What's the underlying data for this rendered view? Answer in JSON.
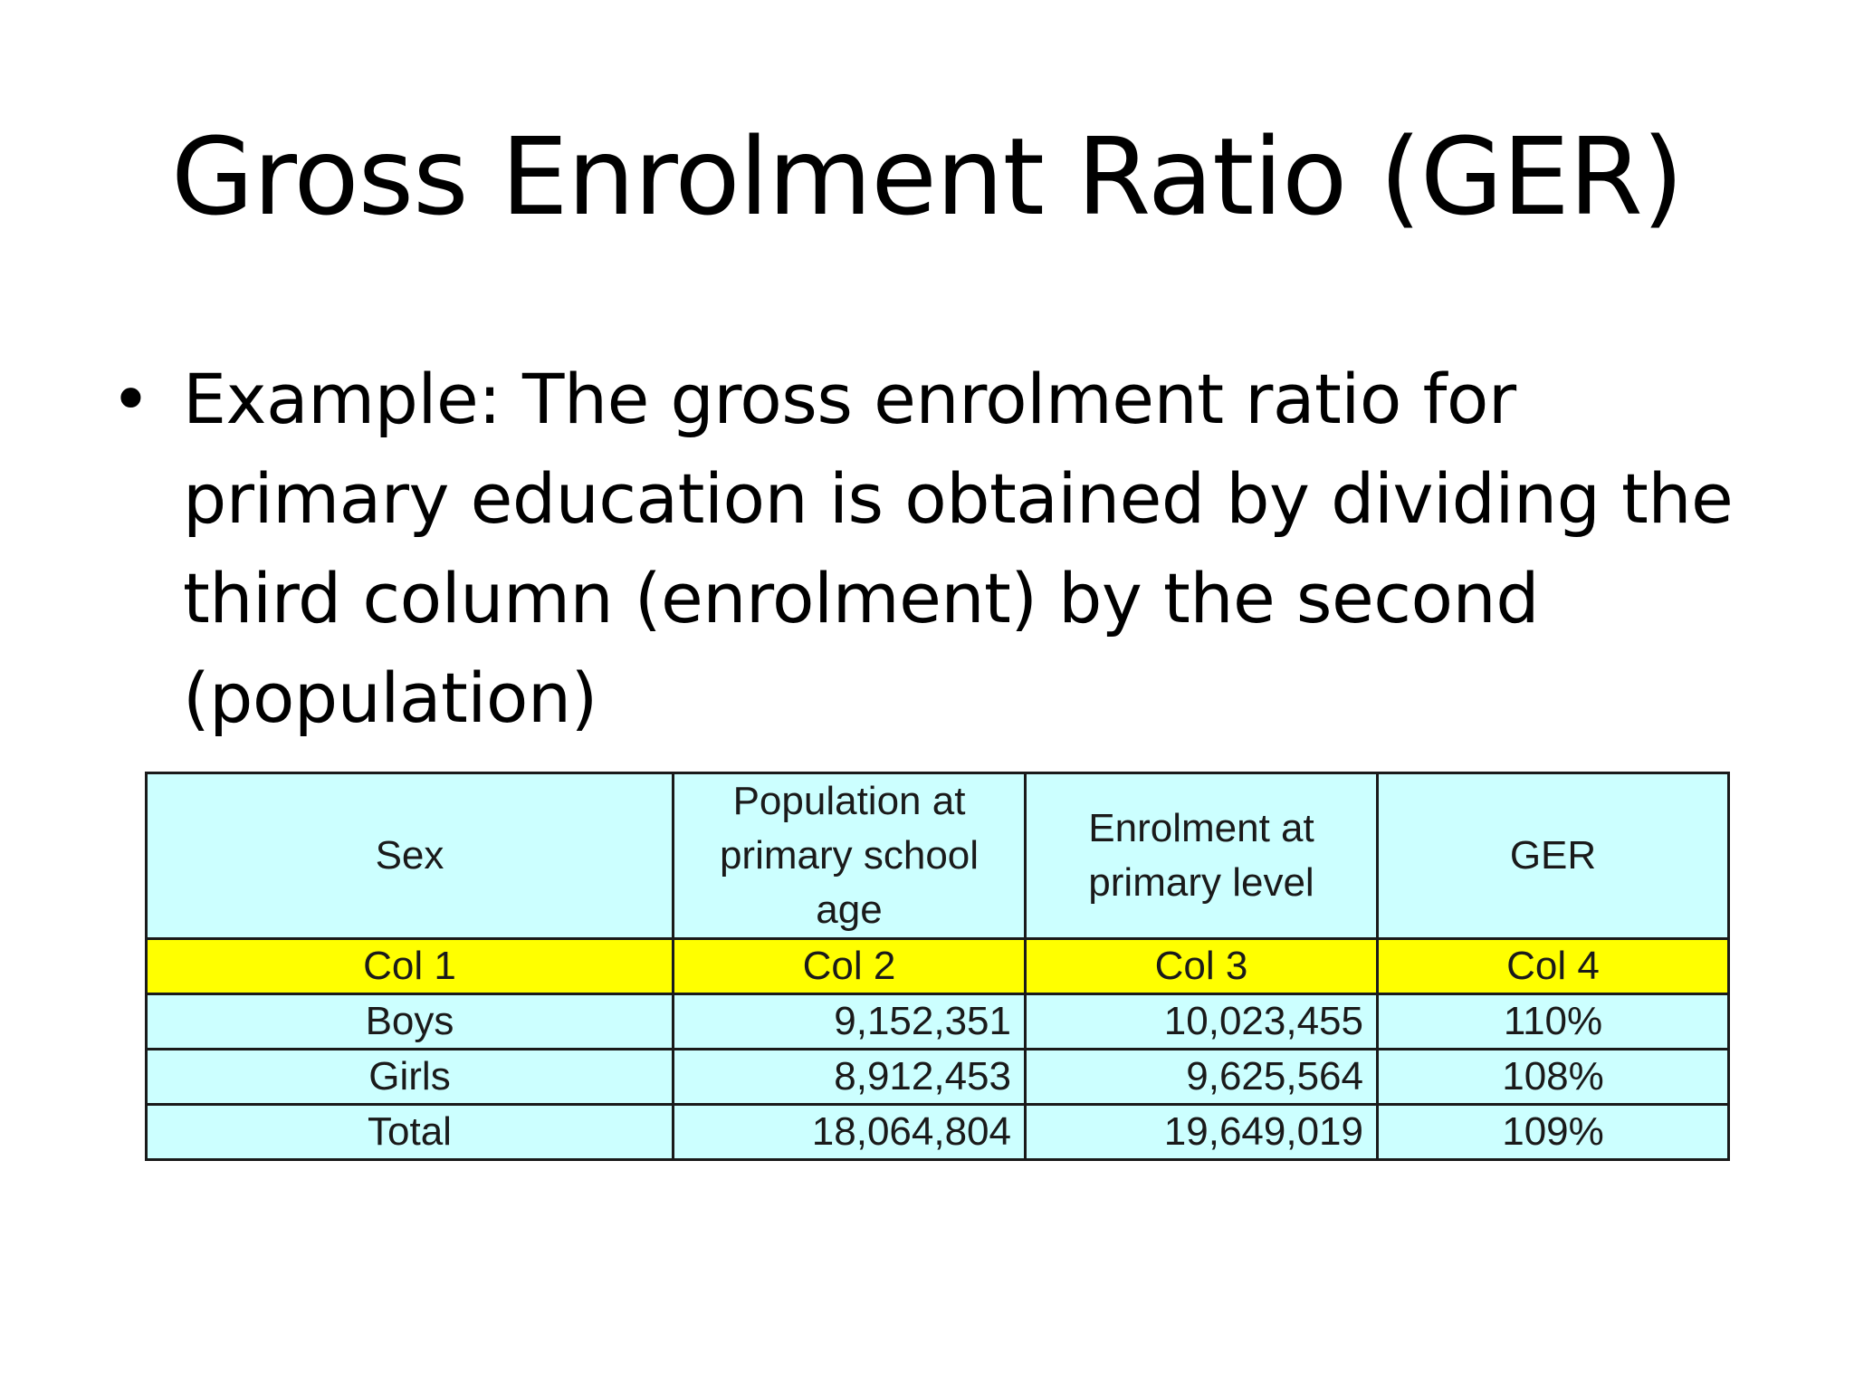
{
  "slide": {
    "title": "Gross Enrolment Ratio (GER)",
    "bullet_symbol": "•",
    "bullet_text": "Example: The gross enrolment ratio for primary education is obtained by dividing the third column (enrolment) by the second (population)"
  },
  "table": {
    "headers": [
      "Sex",
      "Population at primary school age",
      "Enrolment at primary level",
      "GER"
    ],
    "column_labels": [
      "Col 1",
      "Col 2",
      "Col 3",
      "Col 4"
    ],
    "rows": [
      {
        "sex": "Boys",
        "population": "9,152,351",
        "enrolment": "10,023,455",
        "ger": "110%"
      },
      {
        "sex": "Girls",
        "population": "8,912,453",
        "enrolment": "9,625,564",
        "ger": "108%"
      },
      {
        "sex": "Total",
        "population": "18,064,804",
        "enrolment": "19,649,019",
        "ger": "109%"
      }
    ],
    "colors": {
      "header_bg": "#ccffff",
      "column_label_bg": "#ffff00",
      "row_bg": "#ccffff",
      "border": "#1a1a1a"
    }
  }
}
